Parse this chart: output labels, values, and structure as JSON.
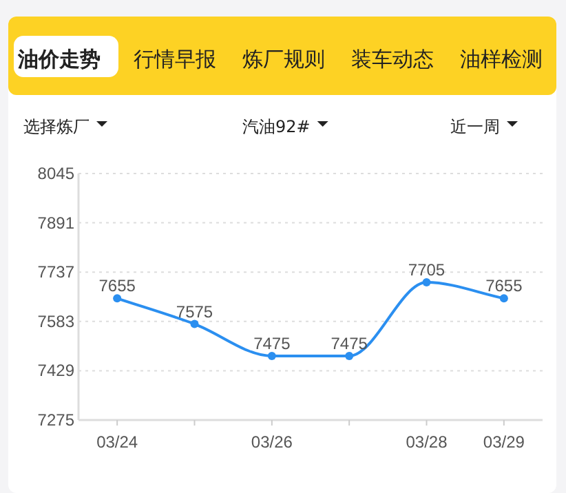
{
  "chart_data": {
    "type": "line",
    "annotations": [
      "油价走势",
      "行情早报",
      "炼厂规则",
      "装车动态",
      "油样检测",
      "选择炼厂",
      "汽油92#",
      "近一周"
    ],
    "categories": [
      "03/24",
      null,
      "03/26",
      null,
      "03/28",
      "03/29"
    ],
    "series": [
      {
        "color": "#2b8ff0",
        "values": [
          7655,
          7575,
          7475,
          7475,
          7705,
          7655
        ]
      }
    ],
    "ylim": [
      7275,
      8045
    ],
    "yticks": [
      7275,
      7429,
      7583,
      7737,
      7891,
      8045
    ],
    "grid": "y",
    "data_labels": true,
    "marker": "circle",
    "line_style": "solid"
  }
}
